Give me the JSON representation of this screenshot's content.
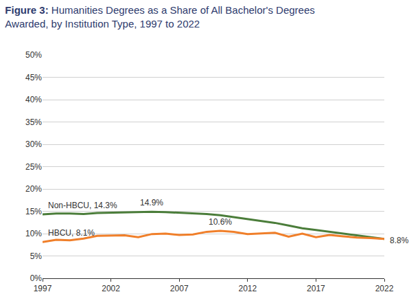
{
  "chart_data": {
    "type": "line",
    "title": "Figure 3: Humanities Degrees as a Share of All Bachelor's Degrees Awarded, by Institution Type, 1997 to 2022",
    "x": [
      1997,
      1998,
      1999,
      2000,
      2001,
      2002,
      2003,
      2004,
      2005,
      2006,
      2007,
      2008,
      2009,
      2010,
      2011,
      2012,
      2013,
      2014,
      2015,
      2016,
      2017,
      2018,
      2019,
      2020,
      2021,
      2022
    ],
    "series": [
      {
        "name": "Non-HBCU",
        "color": "#4b7d3a",
        "values": [
          14.3,
          14.5,
          14.5,
          14.4,
          14.6,
          14.7,
          14.8,
          14.9,
          14.9,
          14.8,
          14.7,
          14.6,
          14.4,
          14.1,
          13.7,
          13.3,
          12.9,
          12.4,
          11.8,
          11.2,
          10.8,
          10.4,
          10.0,
          9.7,
          9.3,
          8.8
        ]
      },
      {
        "name": "HBCU",
        "color": "#f07f2a",
        "values": [
          8.1,
          8.6,
          8.5,
          8.9,
          9.5,
          9.6,
          9.6,
          9.2,
          9.9,
          10.0,
          9.7,
          9.8,
          10.4,
          10.6,
          10.4,
          9.9,
          10.1,
          10.2,
          9.3,
          10.0,
          9.2,
          9.7,
          9.4,
          9.1,
          9.0,
          8.8
        ]
      }
    ],
    "annotations": [
      {
        "text": "Non-HBCU, 14.3%",
        "x": 1997,
        "y": 14.3
      },
      {
        "text": "14.9%",
        "x": 2005,
        "y": 14.9
      },
      {
        "text": "HBCU, 8.1%",
        "x": 1997,
        "y": 8.1
      },
      {
        "text": "10.6%",
        "x": 2010,
        "y": 10.6
      },
      {
        "text": "8.8%",
        "x": 2022,
        "y": 8.8
      }
    ],
    "xlim": [
      1997,
      2022
    ],
    "xticks": [
      1997,
      2002,
      2007,
      2012,
      2017,
      2022
    ],
    "ylim": [
      0,
      50
    ],
    "yticks": [
      {
        "value": 0,
        "label": "0%"
      },
      {
        "value": 5,
        "label": "5%"
      },
      {
        "value": 10,
        "label": "10%"
      },
      {
        "value": 15,
        "label": "15%"
      },
      {
        "value": 20,
        "label": "20%"
      },
      {
        "value": 25,
        "label": "25%"
      },
      {
        "value": 30,
        "label": "30%"
      },
      {
        "value": 35,
        "label": "35%"
      },
      {
        "value": 40,
        "label": "40%"
      },
      {
        "value": 45,
        "label": "45%"
      },
      {
        "value": 50,
        "label": "50%"
      }
    ],
    "grid": true
  }
}
